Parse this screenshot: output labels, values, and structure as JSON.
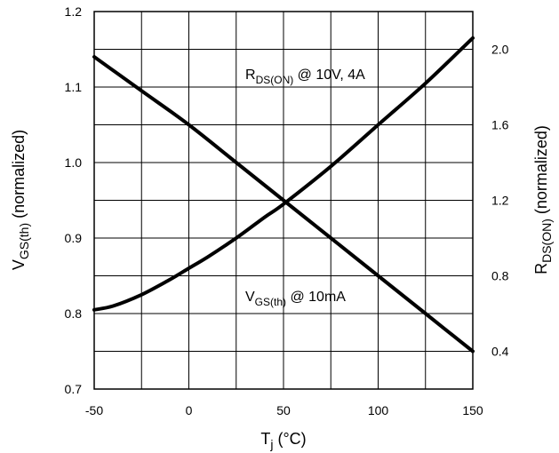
{
  "chart_data": {
    "type": "line",
    "x_axis": {
      "label_main": "T",
      "label_sub": "j",
      "label_suffix": " (°C)",
      "range": [
        -50,
        150
      ],
      "ticks": [
        -50,
        0,
        50,
        100,
        150
      ],
      "tick_labels": [
        "-50",
        "0",
        "50",
        "100",
        "150"
      ],
      "grid_step": 25
    },
    "y_axis_left": {
      "label_main": "V",
      "label_sub": "GS(th)",
      "label_suffix": " (normalized)",
      "range": [
        0.7,
        1.2
      ],
      "ticks": [
        0.7,
        0.8,
        0.9,
        1.0,
        1.1,
        1.2
      ],
      "tick_labels": [
        "0.7",
        "0.8",
        "0.9",
        "1.0",
        "1.1",
        "1.2"
      ],
      "grid_step": 0.05
    },
    "y_axis_right": {
      "label_main": "R",
      "label_sub": "DS(ON)",
      "label_suffix": " (normalized)",
      "range": [
        0.2,
        2.2
      ],
      "ticks": [
        0.4,
        0.8,
        1.2,
        1.6,
        2.0
      ],
      "tick_labels": [
        "0.4",
        "0.8",
        "1.2",
        "1.6",
        "2.0"
      ]
    },
    "grid": true,
    "series": [
      {
        "axis": "left",
        "annotation_main": "V",
        "annotation_sub": "GS(th)",
        "annotation_suffix": " @ 10mA",
        "x": [
          -50,
          -25,
          0,
          25,
          50,
          75,
          100,
          125,
          150
        ],
        "y": [
          1.14,
          1.095,
          1.05,
          1.0,
          0.95,
          0.9,
          0.85,
          0.8,
          0.75
        ]
      },
      {
        "axis": "right",
        "annotation_main": "R",
        "annotation_sub": "DS(ON)",
        "annotation_suffix": " @ 10V, 4A",
        "x": [
          -50,
          -40,
          -25,
          -10,
          0,
          10,
          25,
          40,
          50,
          75,
          100,
          125,
          150
        ],
        "y": [
          0.62,
          0.64,
          0.7,
          0.78,
          0.84,
          0.9,
          1.0,
          1.11,
          1.18,
          1.38,
          1.6,
          1.82,
          2.06
        ]
      }
    ]
  }
}
